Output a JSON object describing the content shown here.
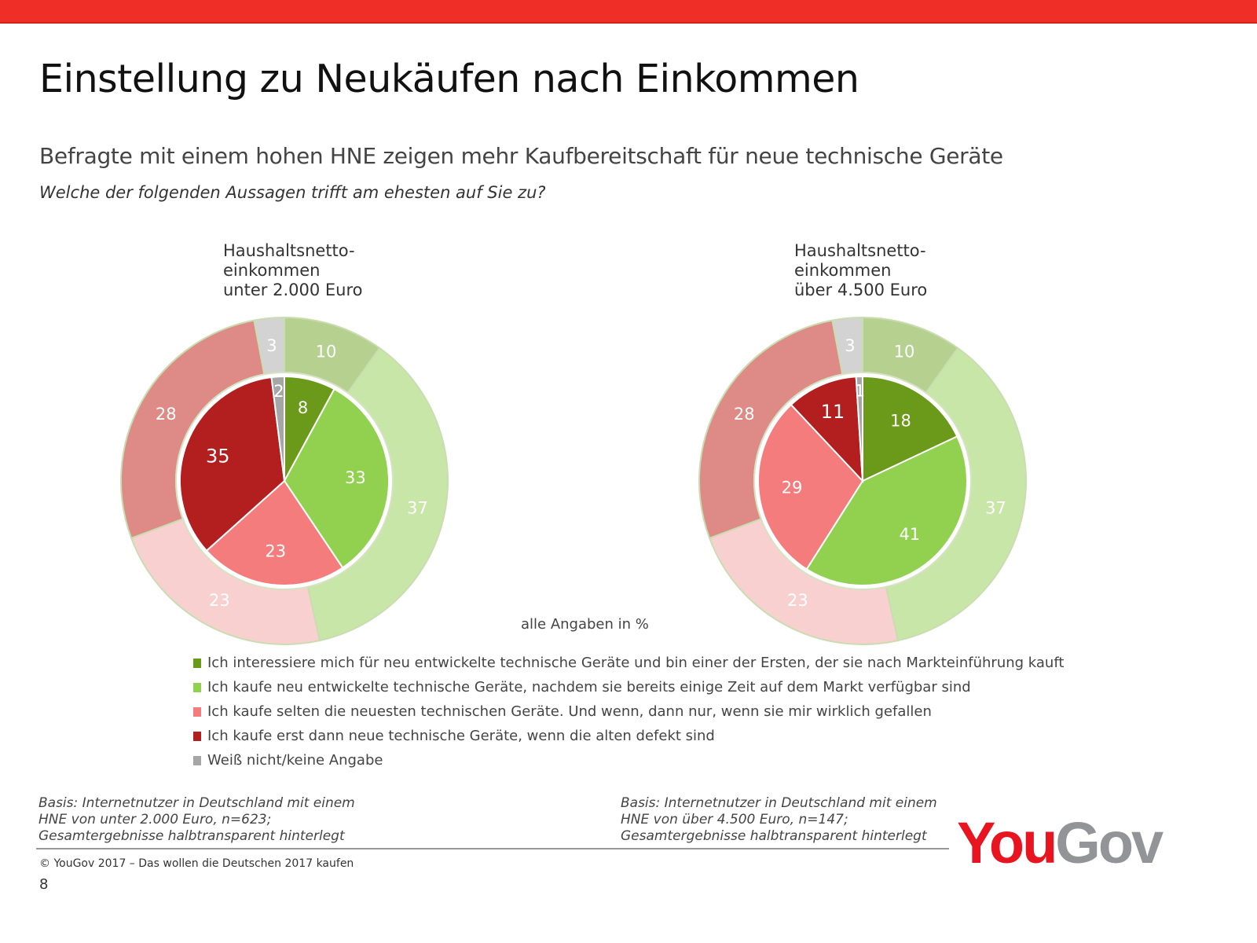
{
  "header": {
    "title": "Einstellung zu Neukäufen nach Einkommen",
    "subtitle": "Befragte mit einem hohen HNE zeigen mehr Kaufbereitschaft für neue technische Geräte",
    "question": "Welche der folgenden Aussagen trifft am ehesten auf Sie zu?"
  },
  "units_note": "alle Angaben in %",
  "colors": {
    "brand_red": "#ee2e27",
    "early_adopter": "#6b9a1a",
    "follower": "#92d050",
    "rarely": "#f47c7c",
    "when_broken": "#b31e1e",
    "dont_know": "#a6a6a6"
  },
  "chart_data": [
    {
      "type": "pie",
      "title": "Haushaltsnetto-\neinkommen\nunter 2.000 Euro",
      "categories": [
        "Early adopter",
        "Follower",
        "Selten",
        "Wenn defekt",
        "Weiß nicht"
      ],
      "series": [
        {
          "name": "Gesamt (halbtransparent, äußerer Ring)",
          "values": [
            10,
            37,
            23,
            28,
            3
          ]
        },
        {
          "name": "HNE unter 2.000 Euro (innerer Kreis)",
          "values": [
            8,
            33,
            23,
            35,
            2
          ]
        }
      ],
      "unit": "%"
    },
    {
      "type": "pie",
      "title": "Haushaltsnetto-\neinkommen\nüber 4.500 Euro",
      "categories": [
        "Early adopter",
        "Follower",
        "Selten",
        "Wenn defekt",
        "Weiß nicht"
      ],
      "series": [
        {
          "name": "Gesamt (halbtransparent, äußerer Ring)",
          "values": [
            10,
            37,
            23,
            28,
            3
          ]
        },
        {
          "name": "HNE über 4.500 Euro (innerer Kreis)",
          "values": [
            18,
            41,
            29,
            11,
            1
          ]
        }
      ],
      "unit": "%"
    }
  ],
  "legend": [
    {
      "label": "Ich interessiere mich für neu entwickelte technische Geräte und bin einer der Ersten, der sie nach Markteinführung kauft",
      "color": "#6b9a1a"
    },
    {
      "label": "Ich kaufe neu entwickelte technische Geräte, nachdem sie bereits einige Zeit auf dem Markt verfügbar sind",
      "color": "#92d050"
    },
    {
      "label": "Ich kaufe selten die neuesten technischen Geräte. Und wenn, dann nur, wenn sie mir wirklich gefallen",
      "color": "#f47c7c"
    },
    {
      "label": "Ich kaufe erst dann neue technische Geräte, wenn die alten defekt sind",
      "color": "#b31e1e"
    },
    {
      "label": "Weiß nicht/keine Angabe",
      "color": "#a6a6a6"
    }
  ],
  "footer": {
    "basis_left": "Basis: Internetnutzer in Deutschland mit einem\nHNE von unter 2.000 Euro, n=623;\nGesamtergebnisse halbtransparent hinterlegt",
    "basis_right": "Basis: Internetnutzer in Deutschland mit einem\nHNE von über 4.500 Euro, n=147;\nGesamtergebnisse halbtransparent hinterlegt",
    "copyright": "©  YouGov 2017 – Das wollen die Deutschen 2017 kaufen",
    "page_number": "8",
    "logo_you": "You",
    "logo_gov": "Gov"
  }
}
